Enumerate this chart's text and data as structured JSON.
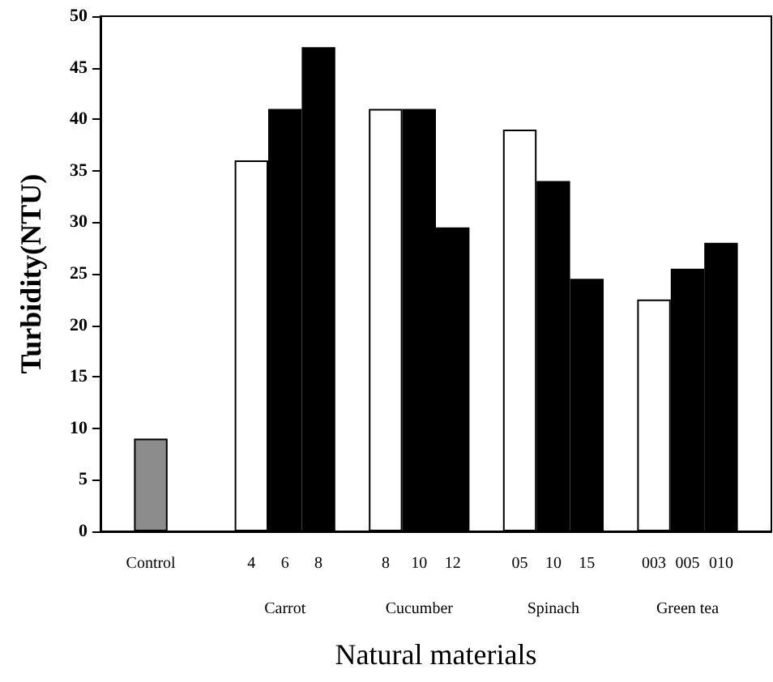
{
  "chart_data": {
    "type": "bar",
    "xlabel": "Natural materials",
    "ylabel": "Turbidity(NTU)",
    "categories": [
      null,
      "Control",
      null,
      null,
      "4",
      "6\nCarrot",
      "8",
      null,
      "8",
      "10\nCucumber",
      "12",
      null,
      "05",
      "10\nSpinach",
      "15",
      null,
      "003",
      "005\nGreen tea",
      "010",
      null
    ],
    "values": [
      null,
      9,
      null,
      null,
      36,
      41,
      47,
      null,
      41,
      41,
      29.5,
      null,
      39,
      34,
      24.5,
      null,
      22.5,
      25.5,
      28,
      null
    ],
    "colors": [
      "#000000",
      "#8c8c8c",
      "#000000",
      "#000000",
      "#ffffff",
      "#000000",
      "#000000",
      "#000000",
      "#ffffff",
      "#000000",
      "#000000",
      "#000000",
      "#ffffff",
      "#000000",
      "#000000",
      "#000000",
      "#ffffff",
      "#000000",
      "#000000",
      "#000000"
    ],
    "ylim": [
      0,
      50
    ],
    "yticks": [
      0,
      5,
      10,
      15,
      20,
      25,
      30,
      35,
      40,
      45,
      50
    ]
  }
}
